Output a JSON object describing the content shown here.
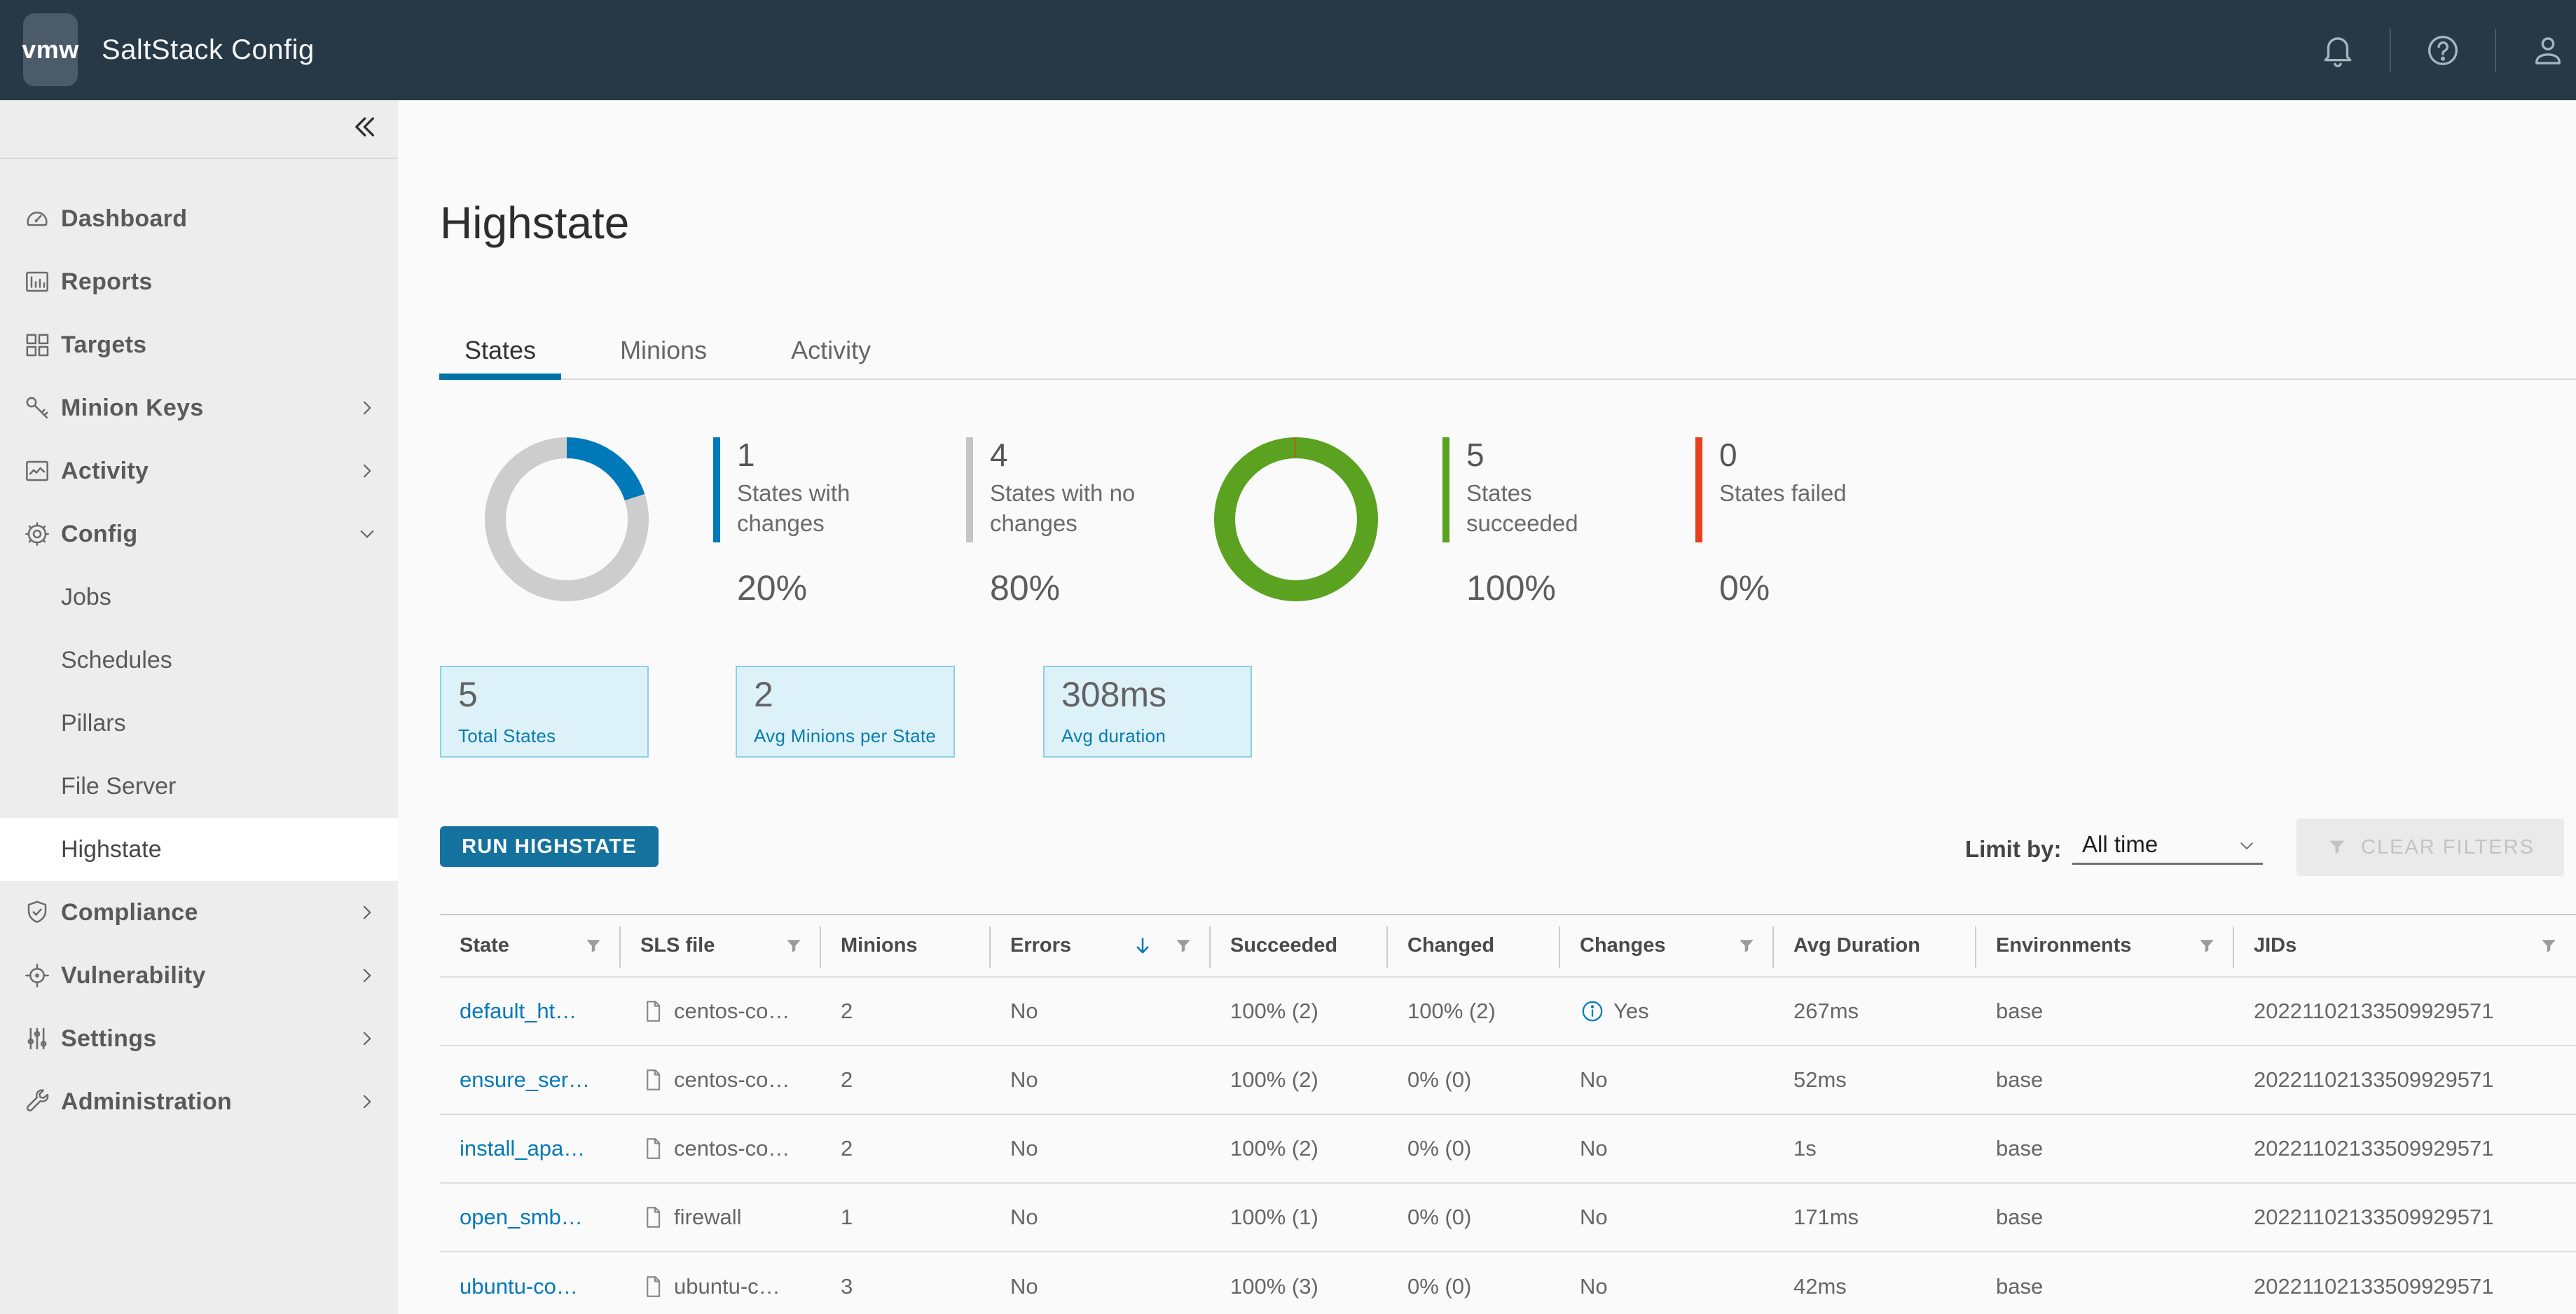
{
  "header": {
    "logo_text": "vmw",
    "app_title": "SaltStack Config"
  },
  "sidebar": {
    "items": [
      {
        "label": "Dashboard",
        "icon": "gauge"
      },
      {
        "label": "Reports",
        "icon": "bar-chart"
      },
      {
        "label": "Targets",
        "icon": "grid"
      },
      {
        "label": "Minion Keys",
        "icon": "key",
        "chevron": "right"
      },
      {
        "label": "Activity",
        "icon": "line-chart",
        "chevron": "right"
      },
      {
        "label": "Config",
        "icon": "gear",
        "chevron": "down",
        "expanded": true
      },
      {
        "label": "Jobs",
        "type": "sub"
      },
      {
        "label": "Schedules",
        "type": "sub"
      },
      {
        "label": "Pillars",
        "type": "sub"
      },
      {
        "label": "File Server",
        "type": "sub"
      },
      {
        "label": "Highstate",
        "type": "sub",
        "active": true
      },
      {
        "label": "Compliance",
        "icon": "shield-check",
        "chevron": "right"
      },
      {
        "label": "Vulnerability",
        "icon": "crosshair",
        "chevron": "right"
      },
      {
        "label": "Settings",
        "icon": "sliders",
        "chevron": "right"
      },
      {
        "label": "Administration",
        "icon": "wrench",
        "chevron": "right"
      }
    ]
  },
  "page": {
    "title": "Highstate",
    "tabs": [
      {
        "label": "States",
        "active": true
      },
      {
        "label": "Minions",
        "active": false
      },
      {
        "label": "Activity",
        "active": false
      }
    ]
  },
  "summary": {
    "donuts": [
      {
        "name": "states-changes-donut",
        "start_deg": 0,
        "segments": [
          {
            "color": "#0079b8",
            "value": 20
          },
          {
            "color": "#cdcdcd",
            "value": 80
          }
        ]
      },
      {
        "name": "states-result-donut",
        "start_deg": -0.7,
        "segments": [
          {
            "color": "#e8401c",
            "value": 0.4
          },
          {
            "color": "#5aa220",
            "value": 99.6
          }
        ]
      }
    ],
    "stats": [
      {
        "count": "1",
        "label": "States with changes",
        "percent": "20%",
        "color": "#0079b8"
      },
      {
        "count": "4",
        "label": "States with no changes",
        "percent": "80%",
        "color": "#c4c4c4"
      },
      {
        "count": "5",
        "label": "States succeeded",
        "percent": "100%",
        "color": "#5aa220"
      },
      {
        "count": "0",
        "label": "States failed",
        "percent": "0%",
        "color": "#e8401c"
      }
    ],
    "cards": [
      {
        "value": "5",
        "label": "Total States"
      },
      {
        "value": "2",
        "label": "Avg Minions per State"
      },
      {
        "value": "308ms",
        "label": "Avg duration"
      }
    ]
  },
  "actions": {
    "run_label": "RUN HIGHSTATE",
    "limit_by_label": "Limit by:",
    "limit_by_value": "All time",
    "clear_filters_label": "CLEAR FILTERS"
  },
  "table": {
    "columns": [
      {
        "label": "State",
        "icons": [
          "filter"
        ]
      },
      {
        "label": "SLS file",
        "icons": [
          "filter"
        ]
      },
      {
        "label": "Minions",
        "icons": []
      },
      {
        "label": "Errors",
        "icons": [
          "sort-desc",
          "filter"
        ]
      },
      {
        "label": "Succeeded",
        "icons": []
      },
      {
        "label": "Changed",
        "icons": []
      },
      {
        "label": "Changes",
        "icons": [
          "filter"
        ]
      },
      {
        "label": "Avg Duration",
        "icons": []
      },
      {
        "label": "Environments",
        "icons": [
          "filter"
        ]
      },
      {
        "label": "JIDs",
        "icons": [
          "filter"
        ]
      }
    ],
    "rows": [
      {
        "state": "default_ht…",
        "sls_file": "centos-co…",
        "minions": "2",
        "errors": "No",
        "succeeded": "100% (2)",
        "changed": "100% (2)",
        "changes": "Yes",
        "changes_info": true,
        "avg_duration": "267ms",
        "environments": "base",
        "jid": "20221102133509929571"
      },
      {
        "state": "ensure_ser…",
        "sls_file": "centos-co…",
        "minions": "2",
        "errors": "No",
        "succeeded": "100% (2)",
        "changed": "0% (0)",
        "changes": "No",
        "changes_info": false,
        "avg_duration": "52ms",
        "environments": "base",
        "jid": "20221102133509929571"
      },
      {
        "state": "install_apa…",
        "sls_file": "centos-co…",
        "minions": "2",
        "errors": "No",
        "succeeded": "100% (2)",
        "changed": "0% (0)",
        "changes": "No",
        "changes_info": false,
        "avg_duration": "1s",
        "environments": "base",
        "jid": "20221102133509929571"
      },
      {
        "state": "open_smb…",
        "sls_file": "firewall",
        "minions": "1",
        "errors": "No",
        "succeeded": "100% (1)",
        "changed": "0% (0)",
        "changes": "No",
        "changes_info": false,
        "avg_duration": "171ms",
        "environments": "base",
        "jid": "20221102133509929571"
      },
      {
        "state": "ubuntu-co…",
        "sls_file": "ubuntu-c…",
        "minions": "3",
        "errors": "No",
        "succeeded": "100% (3)",
        "changed": "0% (0)",
        "changes": "No",
        "changes_info": false,
        "avg_duration": "42ms",
        "environments": "base",
        "jid": "20221102133509929571"
      }
    ]
  }
}
